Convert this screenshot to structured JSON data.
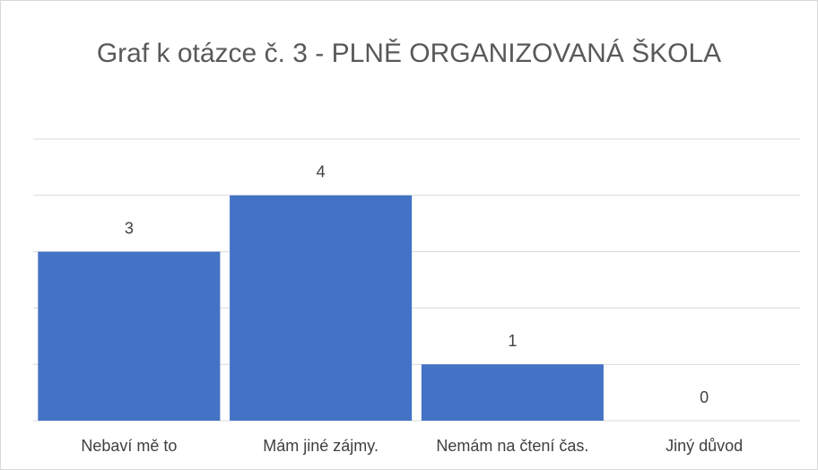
{
  "chart_data": {
    "type": "bar",
    "title": "Graf k otázce č. 3 - PLNĚ ORGANIZOVANÁ ŠKOLA",
    "categories": [
      "Nebaví mě to",
      "Mám jiné zájmy.",
      "Nemám na čtení čas.",
      "Jiný důvod"
    ],
    "values": [
      3,
      4,
      1,
      0
    ],
    "color": "#4472c4",
    "ylim": [
      0,
      5
    ],
    "yticks": [
      0,
      1,
      2,
      3,
      4,
      5
    ],
    "grid": true
  }
}
